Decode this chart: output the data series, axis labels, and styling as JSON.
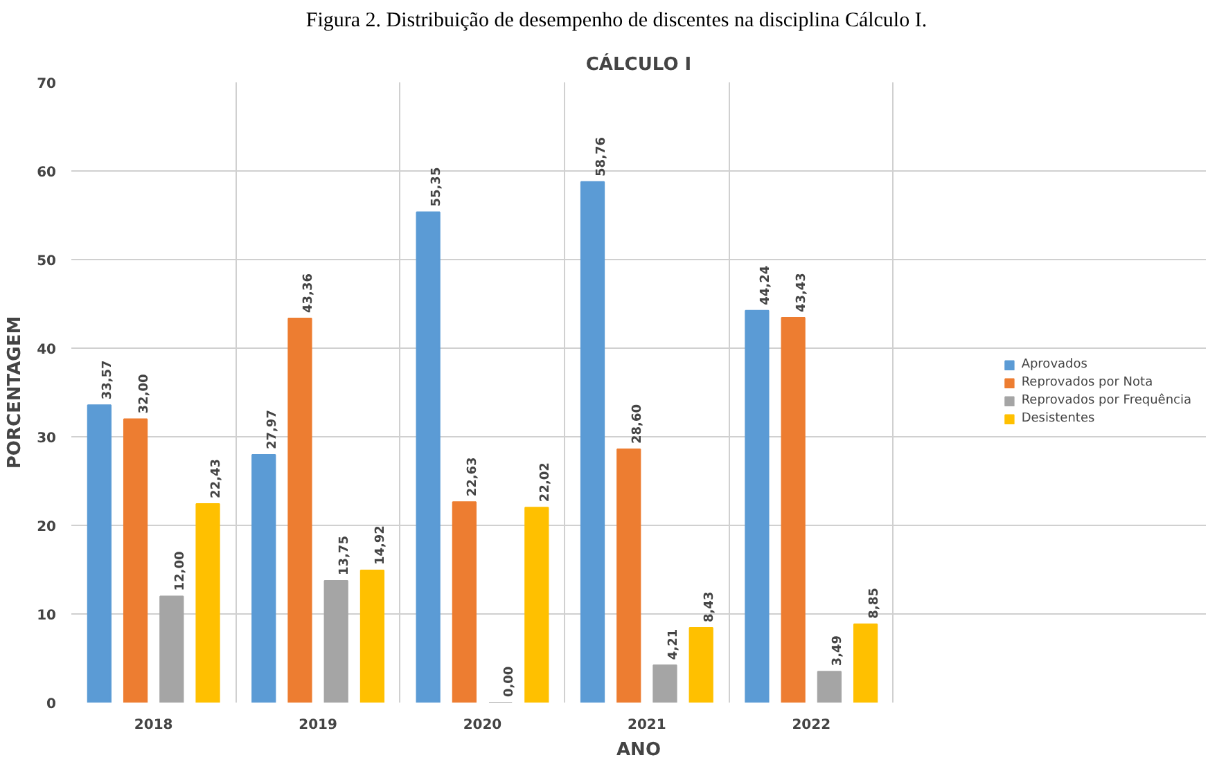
{
  "chart_data": {
    "type": "bar",
    "title": "CÁLCULO I",
    "xlabel": "ANO",
    "ylabel": "PORCENTAGEM",
    "annotations": [
      "Figura 2. Distribuição de desempenho de discentes na disciplina Cálculo I."
    ],
    "categories": [
      "2018",
      "2019",
      "2020",
      "2021",
      "2022"
    ],
    "series": [
      {
        "name": "Aprovados",
        "color": "#5b9bd5",
        "values": [
          33.57,
          27.97,
          55.35,
          58.76,
          44.24
        ],
        "value_labels": [
          "33,57",
          "27,97",
          "55,35",
          "58,76",
          "44,24"
        ]
      },
      {
        "name": "Reprovados por Nota",
        "color": "#ed7d31",
        "values": [
          32.0,
          43.36,
          22.63,
          28.6,
          43.43
        ],
        "value_labels": [
          "32,00",
          "43,36",
          "22,63",
          "28,60",
          "43,43"
        ]
      },
      {
        "name": "Reprovados por Frequência",
        "color": "#a5a5a5",
        "values": [
          12.0,
          13.75,
          0.0,
          4.21,
          3.49
        ],
        "value_labels": [
          "12,00",
          "13,75",
          "0,00",
          "4,21",
          "3,49"
        ]
      },
      {
        "name": "Desistentes",
        "color": "#ffc000",
        "values": [
          22.43,
          14.92,
          22.02,
          8.43,
          8.85
        ],
        "value_labels": [
          "22,43",
          "14,92",
          "22,02",
          "8,43",
          "8,85"
        ]
      }
    ],
    "ylim": [
      0,
      70
    ],
    "yticks": [
      0,
      10,
      20,
      30,
      40,
      50,
      60,
      70
    ],
    "grid": true,
    "legend": "right"
  }
}
